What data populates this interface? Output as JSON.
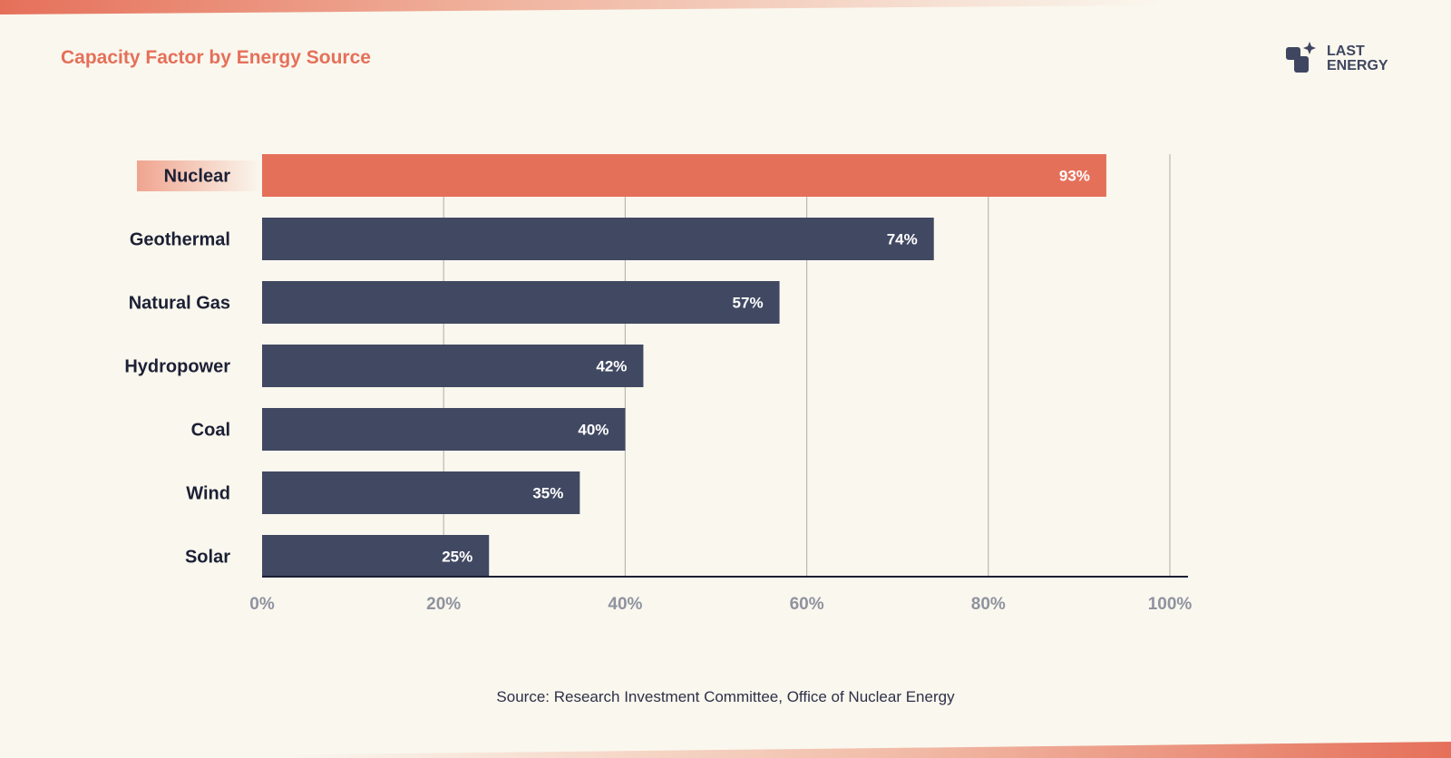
{
  "title": "Capacity Factor by Energy Source",
  "logo": {
    "line1": "LAST",
    "line2": "ENERGY"
  },
  "source": "Source: Research Investment Committee, Office of Nuclear Energy",
  "colors": {
    "accent": "#e5705a",
    "bar": "#414862",
    "text": "#1c2035",
    "tick": "#8f939f",
    "grid": "#b9b8b2",
    "background": "#faf7ee"
  },
  "chart_data": {
    "type": "bar",
    "orientation": "horizontal",
    "categories": [
      "Nuclear",
      "Geothermal",
      "Natural Gas",
      "Hydropower",
      "Coal",
      "Wind",
      "Solar"
    ],
    "values": [
      93,
      74,
      57,
      42,
      40,
      35,
      25
    ],
    "value_labels": [
      "93%",
      "74%",
      "57%",
      "42%",
      "40%",
      "35%",
      "25%"
    ],
    "highlight": "Nuclear",
    "xlim": [
      0,
      100
    ],
    "xticks": [
      0,
      20,
      40,
      60,
      80,
      100
    ],
    "xtick_labels": [
      "0%",
      "20%",
      "40%",
      "60%",
      "80%",
      "100%"
    ],
    "grid": true
  }
}
